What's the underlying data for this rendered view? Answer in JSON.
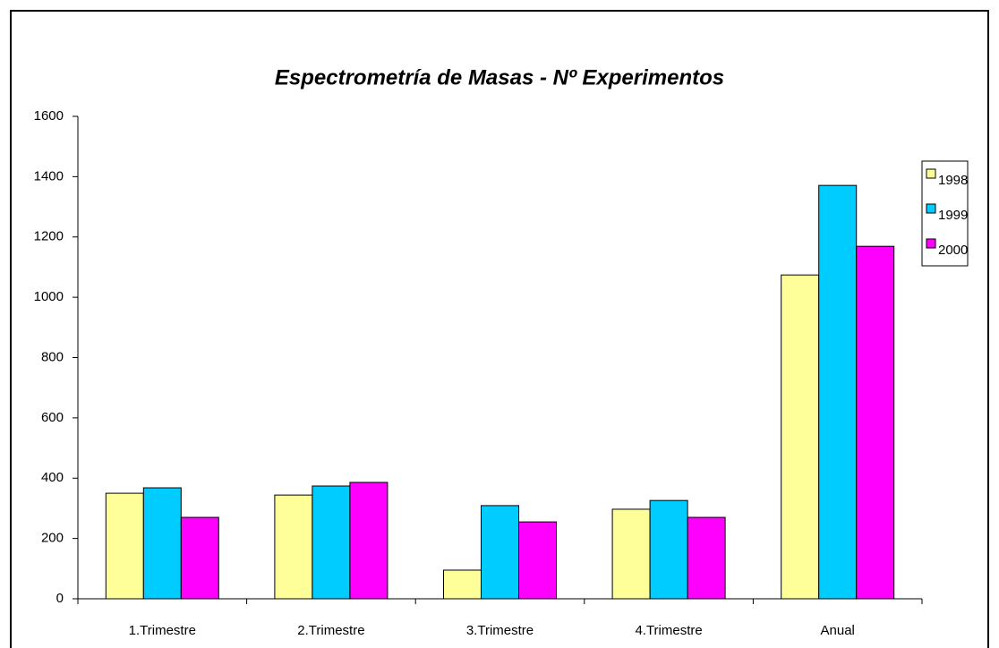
{
  "chart_data": {
    "type": "bar",
    "title": "Espectrometría de Masas - Nº  Experimentos",
    "categories": [
      "1.Trimestre",
      "2.Trimestre",
      "3.Trimestre",
      "4.Trimestre",
      "Anual"
    ],
    "series": [
      {
        "name": "1998",
        "color": "#ffff99",
        "values": [
          350,
          344,
          95,
          297,
          1074
        ]
      },
      {
        "name": "1999",
        "color": "#00ccff",
        "values": [
          368,
          374,
          309,
          326,
          1371
        ]
      },
      {
        "name": "2000",
        "color": "#ff00ff",
        "values": [
          270,
          386,
          255,
          270,
          1169
        ]
      }
    ],
    "ylim": [
      0,
      1600
    ],
    "yticks": [
      0,
      200,
      400,
      600,
      800,
      1000,
      1200,
      1400,
      1600
    ],
    "legend": "right"
  }
}
